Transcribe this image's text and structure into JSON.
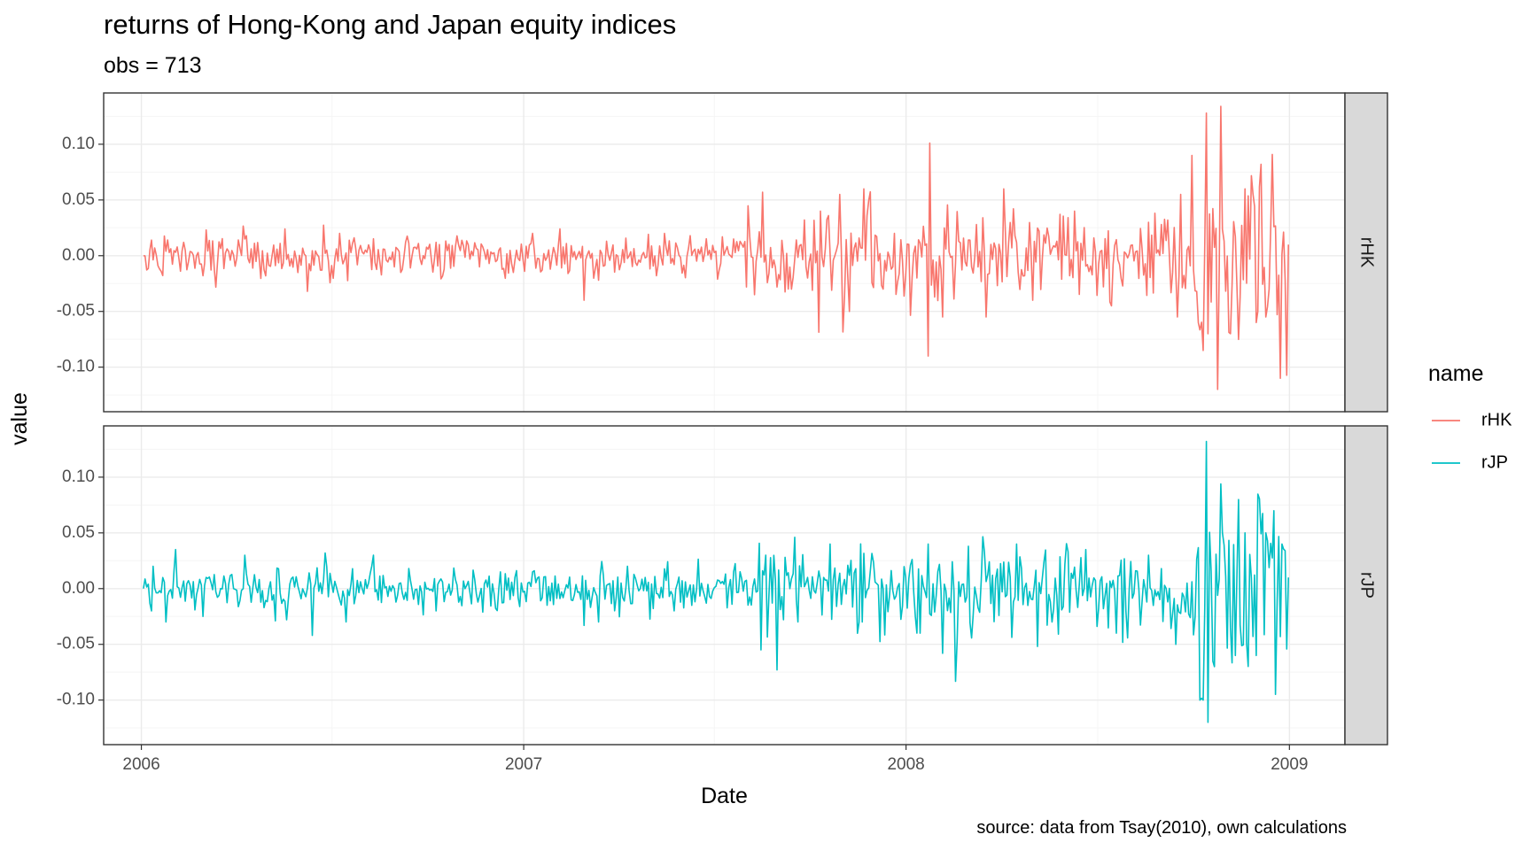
{
  "chart_data": {
    "type": "line",
    "title": "returns of Hong-Kong and Japan equity indices",
    "subtitle": "obs = 713",
    "caption": "source: data from Tsay(2010), own calculations",
    "xlabel": "Date",
    "ylabel": "value",
    "x_ticks": [
      "2006",
      "2007",
      "2008",
      "2009"
    ],
    "x_range": [
      "2005-11-26",
      "2009-02-23"
    ],
    "y_ticks": [
      0.1,
      0.05,
      0.0,
      -0.05,
      -0.1
    ],
    "y_tick_labels": [
      "0.10",
      "0.05",
      "0.00",
      "-0.05",
      "-0.10"
    ],
    "ylim": [
      -0.14,
      0.146
    ],
    "facets": [
      "rHK",
      "rJP"
    ],
    "legend": {
      "title": "name",
      "position": "right",
      "entries": [
        {
          "label": "rHK",
          "color": "#F8766D"
        },
        {
          "label": "rJP",
          "color": "#00BFC4"
        }
      ]
    },
    "grid": true,
    "series": [
      {
        "name": "rHK",
        "color": "#F8766D",
        "x_start": "2006-01-03",
        "x_end": "2008-12-31",
        "n_obs": 713,
        "anchors": [
          [
            "2006-01-03",
            0.0
          ],
          [
            "2006-01-10",
            0.014
          ],
          [
            "2006-01-20",
            -0.014
          ],
          [
            "2006-02-10",
            0.012
          ],
          [
            "2006-03-01",
            -0.018
          ],
          [
            "2006-04-10",
            0.015
          ],
          [
            "2006-05-18",
            0.024
          ],
          [
            "2006-06-08",
            -0.032
          ],
          [
            "2006-07-10",
            0.02
          ],
          [
            "2006-09-05",
            -0.015
          ],
          [
            "2006-10-10",
            0.012
          ],
          [
            "2006-11-20",
            -0.01
          ],
          [
            "2007-01-10",
            0.02
          ],
          [
            "2007-02-27",
            -0.04
          ],
          [
            "2007-03-14",
            -0.022
          ],
          [
            "2007-05-15",
            0.02
          ],
          [
            "2007-07-20",
            0.015
          ],
          [
            "2007-08-10",
            -0.035
          ],
          [
            "2007-08-17",
            0.057
          ],
          [
            "2007-09-10",
            -0.03
          ],
          [
            "2007-10-12",
            0.04
          ],
          [
            "2007-10-29",
            0.055
          ],
          [
            "2007-11-08",
            -0.05
          ],
          [
            "2007-11-22",
            0.06
          ],
          [
            "2007-12-10",
            -0.03
          ],
          [
            "2008-01-11",
            -0.02
          ],
          [
            "2008-01-22",
            -0.09
          ],
          [
            "2008-01-24",
            0.101
          ],
          [
            "2008-02-05",
            -0.055
          ],
          [
            "2008-03-18",
            -0.055
          ],
          [
            "2008-04-03",
            0.06
          ],
          [
            "2008-05-01",
            -0.04
          ],
          [
            "2008-06-10",
            0.04
          ],
          [
            "2008-07-15",
            -0.045
          ],
          [
            "2008-08-20",
            0.03
          ],
          [
            "2008-09-16",
            -0.055
          ],
          [
            "2008-09-19",
            0.055
          ],
          [
            "2008-09-30",
            0.09
          ],
          [
            "2008-10-06",
            -0.06
          ],
          [
            "2008-10-10",
            -0.085
          ],
          [
            "2008-10-13",
            0.128
          ],
          [
            "2008-10-16",
            -0.07
          ],
          [
            "2008-10-24",
            -0.12
          ],
          [
            "2008-10-27",
            -0.135
          ],
          [
            "2008-10-28",
            0.134
          ],
          [
            "2008-11-06",
            -0.07
          ],
          [
            "2008-11-20",
            0.06
          ],
          [
            "2008-12-01",
            -0.06
          ],
          [
            "2008-12-05",
            0.082
          ],
          [
            "2008-12-10",
            -0.055
          ],
          [
            "2008-12-31",
            0.01
          ]
        ]
      },
      {
        "name": "rJP",
        "color": "#00BFC4",
        "x_start": "2006-01-03",
        "x_end": "2008-12-31",
        "n_obs": 713,
        "anchors": [
          [
            "2006-01-03",
            0.0
          ],
          [
            "2006-01-10",
            -0.02
          ],
          [
            "2006-01-25",
            -0.03
          ],
          [
            "2006-02-03",
            0.035
          ],
          [
            "2006-03-01",
            -0.025
          ],
          [
            "2006-04-10",
            0.03
          ],
          [
            "2006-05-20",
            -0.028
          ],
          [
            "2006-06-13",
            -0.042
          ],
          [
            "2006-06-25",
            0.032
          ],
          [
            "2006-07-15",
            -0.03
          ],
          [
            "2006-08-10",
            0.03
          ],
          [
            "2006-10-10",
            -0.02
          ],
          [
            "2006-12-10",
            0.015
          ],
          [
            "2007-01-10",
            0.015
          ],
          [
            "2007-02-27",
            -0.033
          ],
          [
            "2007-03-14",
            -0.03
          ],
          [
            "2007-04-10",
            0.02
          ],
          [
            "2007-06-10",
            -0.015
          ],
          [
            "2007-07-20",
            0.015
          ],
          [
            "2007-08-16",
            -0.055
          ],
          [
            "2007-08-20",
            0.03
          ],
          [
            "2007-09-20",
            -0.03
          ],
          [
            "2007-10-20",
            0.04
          ],
          [
            "2007-11-20",
            -0.03
          ],
          [
            "2008-01-15",
            -0.04
          ],
          [
            "2008-01-22",
            0.04
          ],
          [
            "2008-02-05",
            -0.058
          ],
          [
            "2008-03-01",
            0.038
          ],
          [
            "2008-04-15",
            0.04
          ],
          [
            "2008-05-20",
            -0.03
          ],
          [
            "2008-06-20",
            0.035
          ],
          [
            "2008-07-20",
            -0.04
          ],
          [
            "2008-08-20",
            0.03
          ],
          [
            "2008-09-15",
            -0.05
          ],
          [
            "2008-10-08",
            -0.1
          ],
          [
            "2008-10-10",
            -0.1
          ],
          [
            "2008-10-14",
            0.132
          ],
          [
            "2008-10-16",
            -0.12
          ],
          [
            "2008-10-22",
            -0.07
          ],
          [
            "2008-10-28",
            0.094
          ],
          [
            "2008-11-10",
            -0.06
          ],
          [
            "2008-11-20",
            0.05
          ],
          [
            "2008-12-01",
            -0.06
          ],
          [
            "2008-12-10",
            0.05
          ],
          [
            "2008-12-31",
            0.01
          ]
        ]
      }
    ]
  }
}
